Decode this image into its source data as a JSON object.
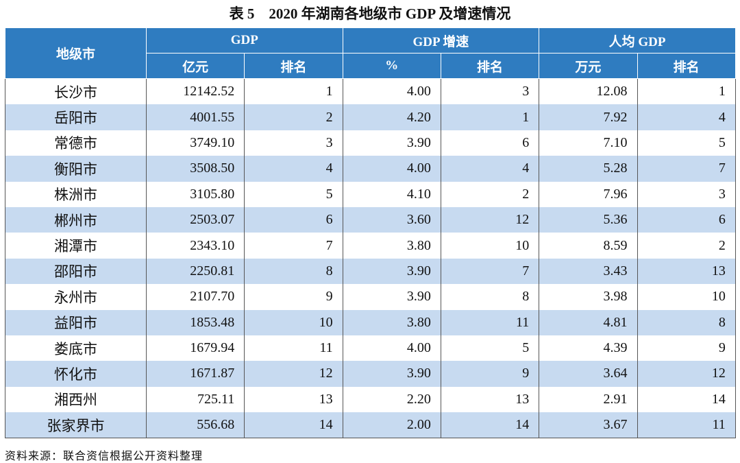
{
  "title": "表 5　2020 年湖南各地级市 GDP 及增速情况",
  "table": {
    "header": {
      "top": [
        "地级市",
        "GDP",
        "GDP 增速",
        "人均 GDP"
      ],
      "sub": [
        "亿元",
        "排名",
        "%",
        "排名",
        "万元",
        "排名"
      ]
    },
    "rows": [
      [
        "长沙市",
        "12142.52",
        "1",
        "4.00",
        "3",
        "12.08",
        "1"
      ],
      [
        "岳阳市",
        "4001.55",
        "2",
        "4.20",
        "1",
        "7.92",
        "4"
      ],
      [
        "常德市",
        "3749.10",
        "3",
        "3.90",
        "6",
        "7.10",
        "5"
      ],
      [
        "衡阳市",
        "3508.50",
        "4",
        "4.00",
        "4",
        "5.28",
        "7"
      ],
      [
        "株洲市",
        "3105.80",
        "5",
        "4.10",
        "2",
        "7.96",
        "3"
      ],
      [
        "郴州市",
        "2503.07",
        "6",
        "3.60",
        "12",
        "5.36",
        "6"
      ],
      [
        "湘潭市",
        "2343.10",
        "7",
        "3.80",
        "10",
        "8.59",
        "2"
      ],
      [
        "邵阳市",
        "2250.81",
        "8",
        "3.90",
        "7",
        "3.43",
        "13"
      ],
      [
        "永州市",
        "2107.70",
        "9",
        "3.90",
        "8",
        "3.98",
        "10"
      ],
      [
        "益阳市",
        "1853.48",
        "10",
        "3.80",
        "11",
        "4.81",
        "8"
      ],
      [
        "娄底市",
        "1679.94",
        "11",
        "4.00",
        "5",
        "4.39",
        "9"
      ],
      [
        "怀化市",
        "1671.87",
        "12",
        "3.90",
        "9",
        "3.64",
        "12"
      ],
      [
        "湘西州",
        "725.11",
        "13",
        "2.20",
        "13",
        "2.91",
        "14"
      ],
      [
        "张家界市",
        "556.68",
        "14",
        "2.00",
        "14",
        "3.67",
        "11"
      ]
    ]
  },
  "source": "资料来源：联合资信根据公开资料整理"
}
